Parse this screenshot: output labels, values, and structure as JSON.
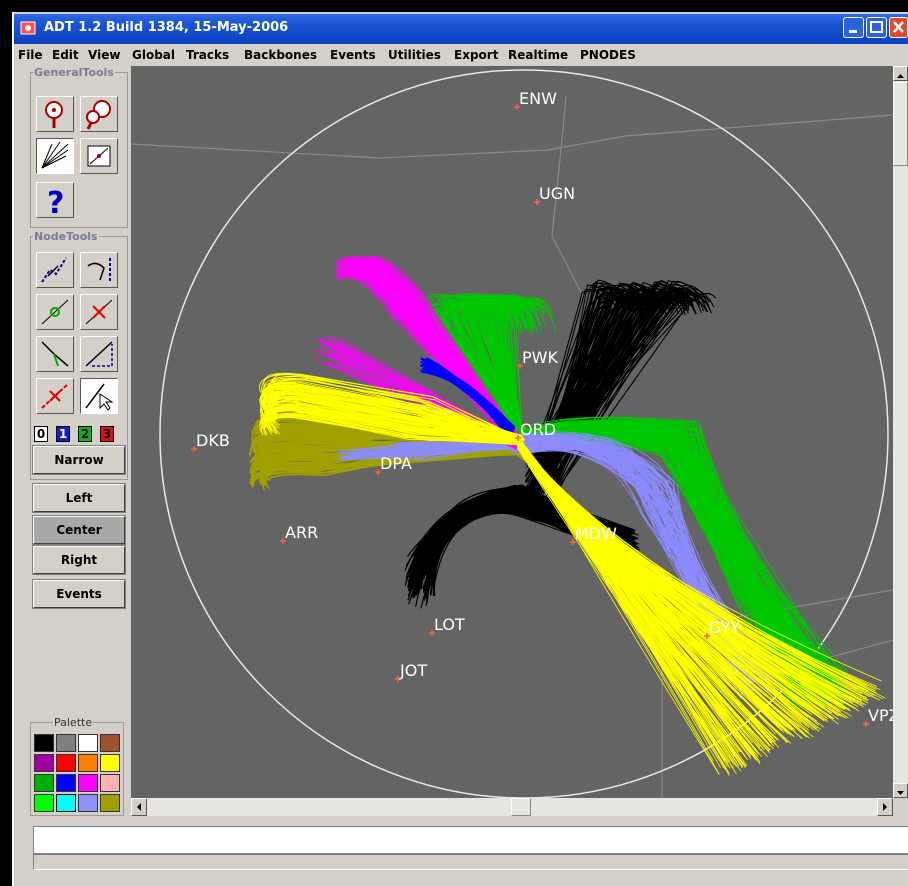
{
  "window": {
    "title": "ADT 1.2 Build 1384, 15-May-2006",
    "controls": [
      "minimize",
      "maximize",
      "close"
    ]
  },
  "menu": {
    "items": [
      "File",
      "Edit",
      "View",
      "Global",
      "Tracks",
      "Backbones",
      "Events",
      "Utilities",
      "Export",
      "Realtime",
      "PNODES"
    ]
  },
  "general_tools": {
    "legend": "GeneralTools",
    "tools": [
      "zoom-in-icon",
      "zoom-region-icon",
      "track-fan-icon",
      "zoom-fit-icon",
      "help-icon"
    ]
  },
  "node_tools": {
    "legend": "NodeTools",
    "tools": [
      "node-move-icon",
      "node-rotate-icon",
      "node-add-icon",
      "node-delete-icon",
      "node-split-icon",
      "node-stretch-icon",
      "link-delete-icon",
      "node-select-icon"
    ],
    "levels": [
      "0",
      "1",
      "2",
      "3"
    ],
    "narrow_label": "Narrow"
  },
  "view_buttons": {
    "left": "Left",
    "center": "Center",
    "right": "Right",
    "events": "Events"
  },
  "palette": {
    "legend": "Palette",
    "colors": [
      "#000000",
      "#808080",
      "#ffffff",
      "#a0522d",
      "#a000a0",
      "#ff0000",
      "#ff8000",
      "#ffff00",
      "#00b000",
      "#0000ff",
      "#ff00ff",
      "#ffb0b0",
      "#00ff00",
      "#00ffff",
      "#9090ff",
      "#a0a000"
    ]
  },
  "map": {
    "stations": [
      {
        "id": "ENW"
      },
      {
        "id": "UGN"
      },
      {
        "id": "PWK"
      },
      {
        "id": "ORD"
      },
      {
        "id": "DKB"
      },
      {
        "id": "DPA"
      },
      {
        "id": "ARR"
      },
      {
        "id": "MDW"
      },
      {
        "id": "LOT"
      },
      {
        "id": "JOT"
      },
      {
        "id": "GYY"
      },
      {
        "id": "VPZ"
      }
    ],
    "track_colors": {
      "magenta": "#ff00ff",
      "green": "#00c800",
      "black": "#000000",
      "yellow": "#ffff00",
      "olive": "#a0a000",
      "periwinkle": "#8c8cff",
      "blue": "#0000ff"
    }
  }
}
